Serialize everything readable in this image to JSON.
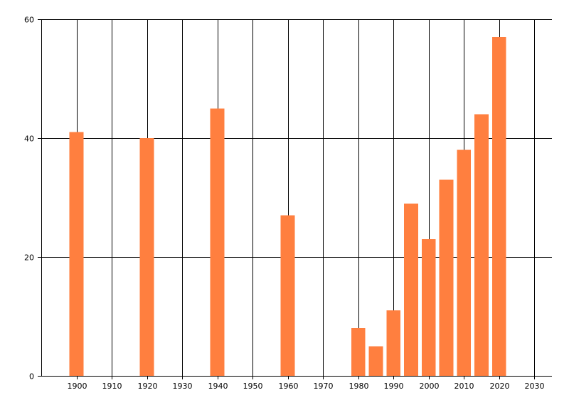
{
  "chart_data": {
    "type": "bar",
    "title": "",
    "xlabel": "",
    "ylabel": "",
    "x": [
      1900,
      1920,
      1940,
      1960,
      1980,
      1985,
      1990,
      1995,
      2000,
      2005,
      2010,
      2015,
      2020
    ],
    "values": [
      41,
      40,
      45,
      27,
      8,
      5,
      11,
      29,
      23,
      33,
      38,
      44,
      57
    ],
    "xlim": [
      1890,
      2035
    ],
    "ylim": [
      0,
      60
    ],
    "x_ticks": [
      1900,
      1910,
      1920,
      1930,
      1940,
      1950,
      1960,
      1970,
      1980,
      1990,
      2000,
      2010,
      2020,
      2030
    ],
    "y_ticks": [
      0,
      20,
      40,
      60
    ],
    "bar_width_years": 4,
    "grid": true,
    "legend": "none",
    "colors": {
      "bar": "#FF7F3F",
      "grid": "#000000",
      "text": "#000000"
    }
  }
}
